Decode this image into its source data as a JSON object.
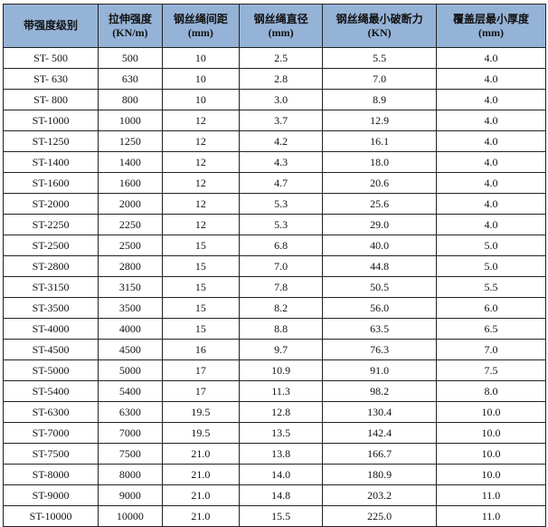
{
  "headers": [
    [
      "带强度级别",
      ""
    ],
    [
      "拉伸强度",
      "(KN/m)"
    ],
    [
      "钢丝绳间距",
      "(mm)"
    ],
    [
      "钢丝绳直径",
      "(mm)"
    ],
    [
      "钢丝绳最小破断力",
      "(KN)"
    ],
    [
      "覆盖层最小厚度",
      "(mm)"
    ]
  ],
  "rows": [
    [
      "ST- 500",
      "500",
      "10",
      "2.5",
      "5.5",
      "4.0"
    ],
    [
      "ST- 630",
      "630",
      "10",
      "2.8",
      "7.0",
      "4.0"
    ],
    [
      "ST- 800",
      "800",
      "10",
      "3.0",
      "8.9",
      "4.0"
    ],
    [
      "ST-1000",
      "1000",
      "12",
      "3.7",
      "12.9",
      "4.0"
    ],
    [
      "ST-1250",
      "1250",
      "12",
      "4.2",
      "16.1",
      "4.0"
    ],
    [
      "ST-1400",
      "1400",
      "12",
      "4.3",
      "18.0",
      "4.0"
    ],
    [
      "ST-1600",
      "1600",
      "12",
      "4.7",
      "20.6",
      "4.0"
    ],
    [
      "ST-2000",
      "2000",
      "12",
      "5.3",
      "25.6",
      "4.0"
    ],
    [
      "ST-2250",
      "2250",
      "12",
      "5.3",
      "29.0",
      "4.0"
    ],
    [
      "ST-2500",
      "2500",
      "15",
      "6.8",
      "40.0",
      "5.0"
    ],
    [
      "ST-2800",
      "2800",
      "15",
      "7.0",
      "44.8",
      "5.0"
    ],
    [
      "ST-3150",
      "3150",
      "15",
      "7.8",
      "50.5",
      "5.5"
    ],
    [
      "ST-3500",
      "3500",
      "15",
      "8.2",
      "56.0",
      "6.0"
    ],
    [
      "ST-4000",
      "4000",
      "15",
      "8.8",
      "63.5",
      "6.5"
    ],
    [
      "ST-4500",
      "4500",
      "16",
      "9.7",
      "76.3",
      "7.0"
    ],
    [
      "ST-5000",
      "5000",
      "17",
      "10.9",
      "91.0",
      "7.5"
    ],
    [
      "ST-5400",
      "5400",
      "17",
      "11.3",
      "98.2",
      "8.0"
    ],
    [
      "ST-6300",
      "6300",
      "19.5",
      "12.8",
      "130.4",
      "10.0"
    ],
    [
      "ST-7000",
      "7000",
      "19.5",
      "13.5",
      "142.4",
      "10.0"
    ],
    [
      "ST-7500",
      "7500",
      "21.0",
      "13.8",
      "166.7",
      "10.0"
    ],
    [
      "ST-8000",
      "8000",
      "21.0",
      "14.0",
      "180.9",
      "10.0"
    ],
    [
      "ST-9000",
      "9000",
      "21.0",
      "14.8",
      "203.2",
      "11.0"
    ],
    [
      "ST-10000",
      "10000",
      "21.0",
      "15.5",
      "225.0",
      "11.0"
    ]
  ],
  "colors": {
    "header_bg": "#95b3d7",
    "border": "#222222"
  }
}
